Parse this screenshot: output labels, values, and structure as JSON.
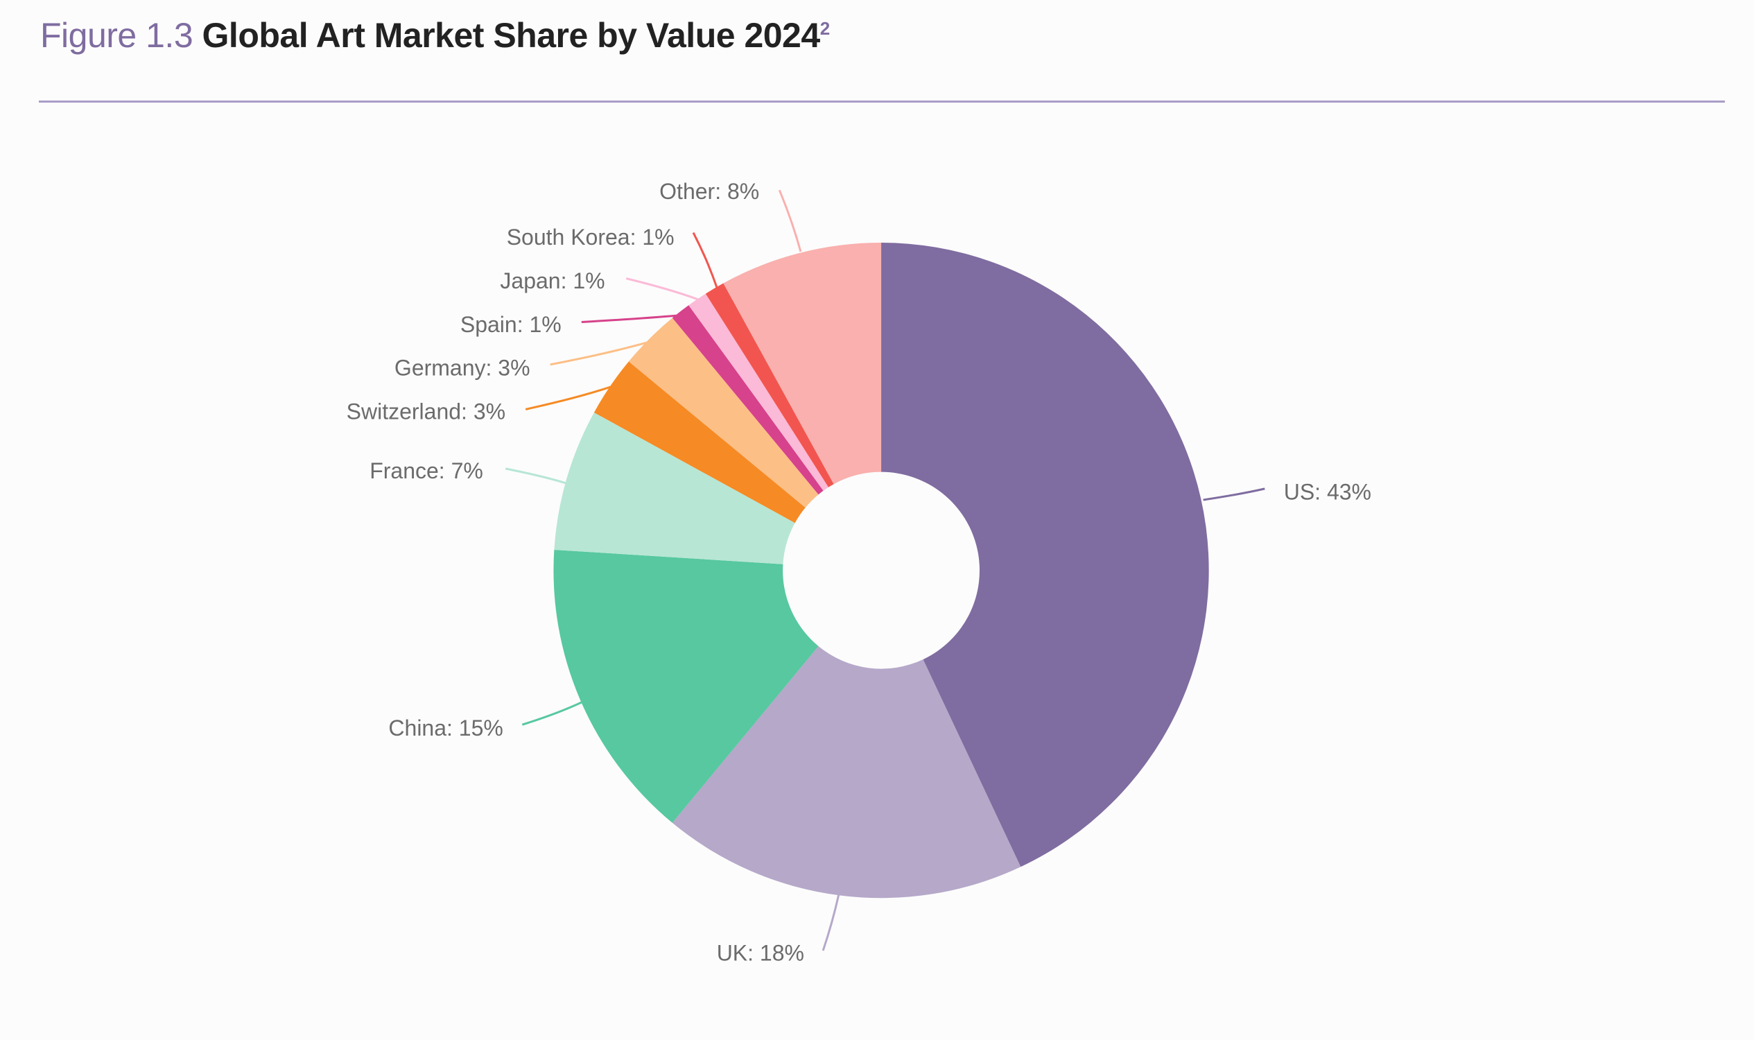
{
  "header": {
    "figure_label": "Figure 1.3",
    "title": "Global Art Market Share by Value 2024",
    "footnote_mark": "2"
  },
  "colors": {
    "rule": "#a99cc7",
    "figure_label": "#7f6ca0"
  },
  "chart_data": {
    "type": "pie",
    "donut": true,
    "title": "Global Art Market Share by Value 2024",
    "unit": "%",
    "start": "12 o'clock, clockwise",
    "categories": [
      "US",
      "UK",
      "China",
      "France",
      "Switzerland",
      "Germany",
      "Spain",
      "Japan",
      "South Korea",
      "Other"
    ],
    "values": [
      43,
      18,
      15,
      7,
      3,
      3,
      1,
      1,
      1,
      8
    ],
    "labels": [
      "US: 43%",
      "UK: 18%",
      "China: 15%",
      "France: 7%",
      "Switzerland: 3%",
      "Germany: 3%",
      "Spain: 1%",
      "Japan: 1%",
      "South Korea: 1%",
      "Other: 8%"
    ],
    "colors": [
      "#7f6ca0",
      "#b5a8c9",
      "#57c8a0",
      "#b7e6d5",
      "#f68a24",
      "#fcbf86",
      "#d6428b",
      "#fbbad7",
      "#f2554f",
      "#f9b0ae"
    ],
    "legend": "none (leader-line labels)"
  }
}
